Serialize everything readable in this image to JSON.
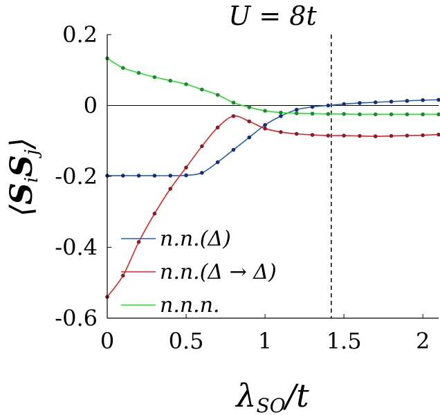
{
  "chart_data": {
    "type": "line",
    "title": "U = 8t",
    "xlabel": "λSO/t",
    "ylabel": "⟨SiSj⟩",
    "xlim": [
      0,
      2.1
    ],
    "ylim": [
      -0.6,
      0.2
    ],
    "xticks": [
      "0",
      "0.5",
      "1",
      "1.5",
      "2"
    ],
    "xtick_values": [
      0,
      0.5,
      1,
      1.5,
      2
    ],
    "yticks": [
      "0.2",
      "0",
      "-0.2",
      "-0.4",
      "-0.6"
    ],
    "ytick_values": [
      0.2,
      0,
      -0.2,
      -0.4,
      -0.6
    ],
    "zero_line": true,
    "vline_x": 1.42,
    "legend_position": "bottom-left",
    "series": [
      {
        "name": "n.n.(Δ)",
        "color": "#1f5fb4",
        "marker_color": "#1a2a7a",
        "x": [
          0,
          0.1,
          0.2,
          0.3,
          0.4,
          0.5,
          0.6,
          0.7,
          0.8,
          0.9,
          1.0,
          1.1,
          1.2,
          1.3,
          1.4,
          1.5,
          1.6,
          1.7,
          1.8,
          1.9,
          2.0,
          2.1
        ],
        "y": [
          -0.198,
          -0.198,
          -0.198,
          -0.198,
          -0.198,
          -0.197,
          -0.19,
          -0.16,
          -0.125,
          -0.09,
          -0.055,
          -0.03,
          -0.012,
          -0.004,
          0.0,
          0.004,
          0.007,
          0.009,
          0.011,
          0.013,
          0.015,
          0.016
        ]
      },
      {
        "name": "n.n.(Δ → Δ)",
        "color": "#e02020",
        "marker_color": "#8a1a2a",
        "x": [
          0,
          0.1,
          0.2,
          0.3,
          0.4,
          0.5,
          0.6,
          0.7,
          0.8,
          0.9,
          1.0,
          1.1,
          1.2,
          1.3,
          1.4,
          1.5,
          1.6,
          1.7,
          1.8,
          1.9,
          2.0,
          2.1
        ],
        "y": [
          -0.54,
          -0.48,
          -0.385,
          -0.305,
          -0.235,
          -0.175,
          -0.115,
          -0.062,
          -0.03,
          -0.045,
          -0.065,
          -0.075,
          -0.08,
          -0.083,
          -0.085,
          -0.085,
          -0.086,
          -0.087,
          -0.086,
          -0.085,
          -0.084,
          -0.082
        ]
      },
      {
        "name": "n.n.n.",
        "color": "#22e022",
        "marker_color": "#1a8a2a",
        "x": [
          0,
          0.1,
          0.2,
          0.3,
          0.4,
          0.5,
          0.6,
          0.7,
          0.8,
          0.9,
          1.0,
          1.1,
          1.2,
          1.3,
          1.4,
          1.5,
          1.6,
          1.7,
          1.8,
          1.9,
          2.0,
          2.1
        ],
        "y": [
          0.133,
          0.106,
          0.092,
          0.08,
          0.07,
          0.06,
          0.045,
          0.03,
          0.008,
          -0.005,
          -0.015,
          -0.02,
          -0.022,
          -0.023,
          -0.024,
          -0.024,
          -0.025,
          -0.025,
          -0.025,
          -0.025,
          -0.025,
          -0.025
        ]
      }
    ]
  }
}
